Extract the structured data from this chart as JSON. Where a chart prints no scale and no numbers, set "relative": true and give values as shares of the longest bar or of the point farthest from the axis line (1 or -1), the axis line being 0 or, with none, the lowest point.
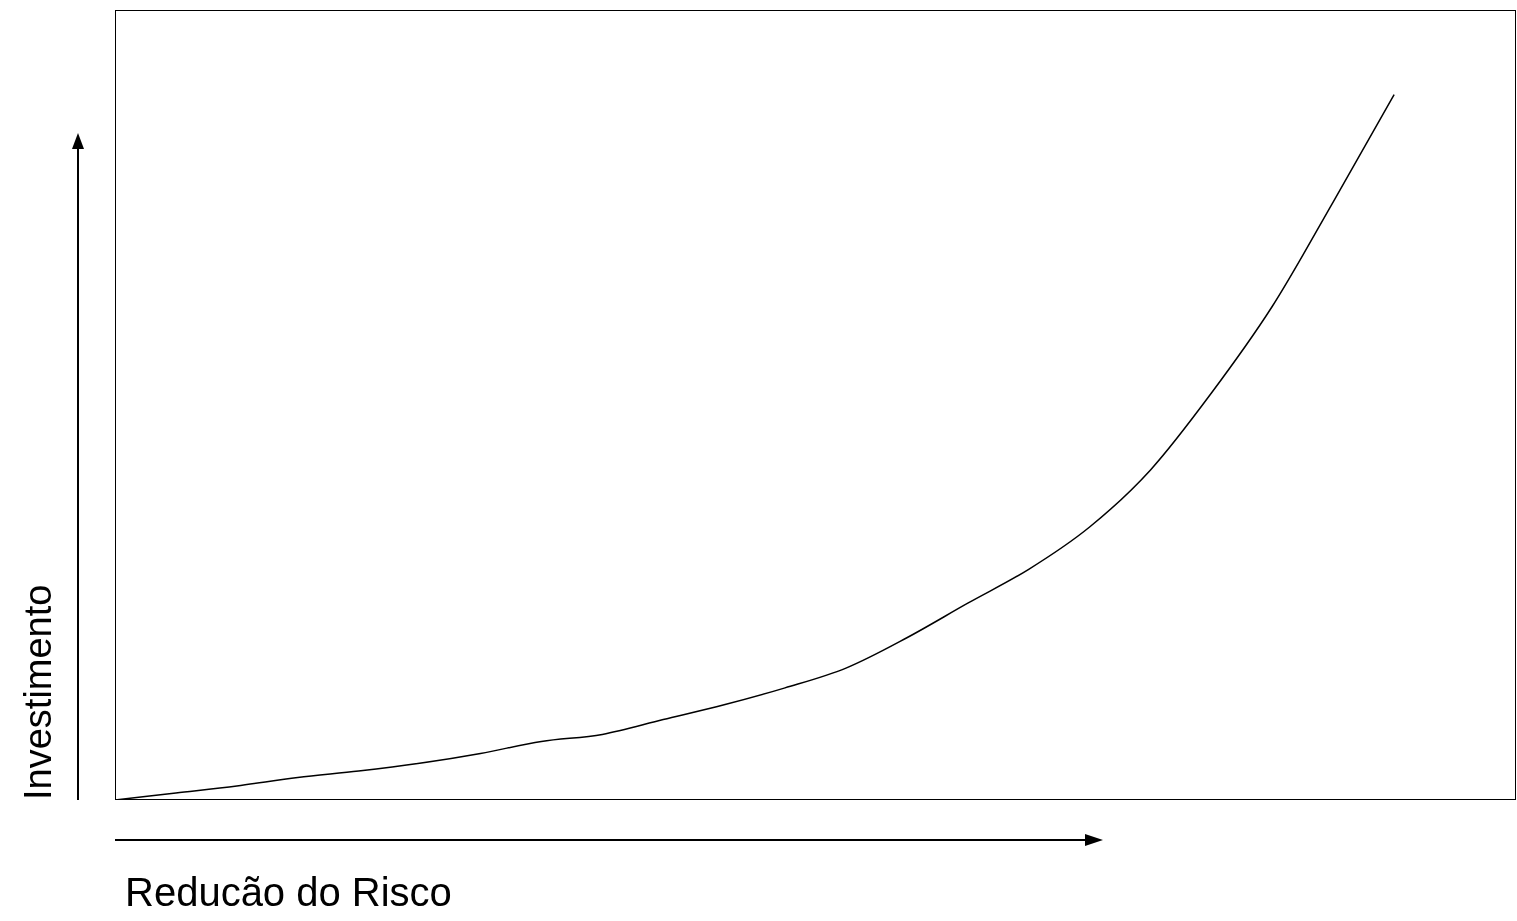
{
  "chart_data": {
    "type": "line",
    "relative": true,
    "xlabel": "Reducão do Risco",
    "ylabel": "Investimento",
    "color": "#000000",
    "marker": "none",
    "grid": false,
    "legend": false,
    "categories": [
      null,
      null,
      null,
      null,
      null,
      null,
      null,
      null,
      null,
      null,
      null,
      null,
      null,
      null,
      null,
      null,
      null,
      null,
      null,
      null,
      null,
      null,
      null,
      null
    ],
    "values": [
      0,
      0.01,
      0.02,
      0.032,
      0.041,
      0.052,
      0.066,
      0.083,
      0.093,
      0.114,
      0.135,
      0.159,
      0.187,
      0.23,
      0.279,
      0.327,
      0.387,
      0.468,
      0.577,
      0.7,
      0.848,
      1,
      null,
      null
    ]
  }
}
